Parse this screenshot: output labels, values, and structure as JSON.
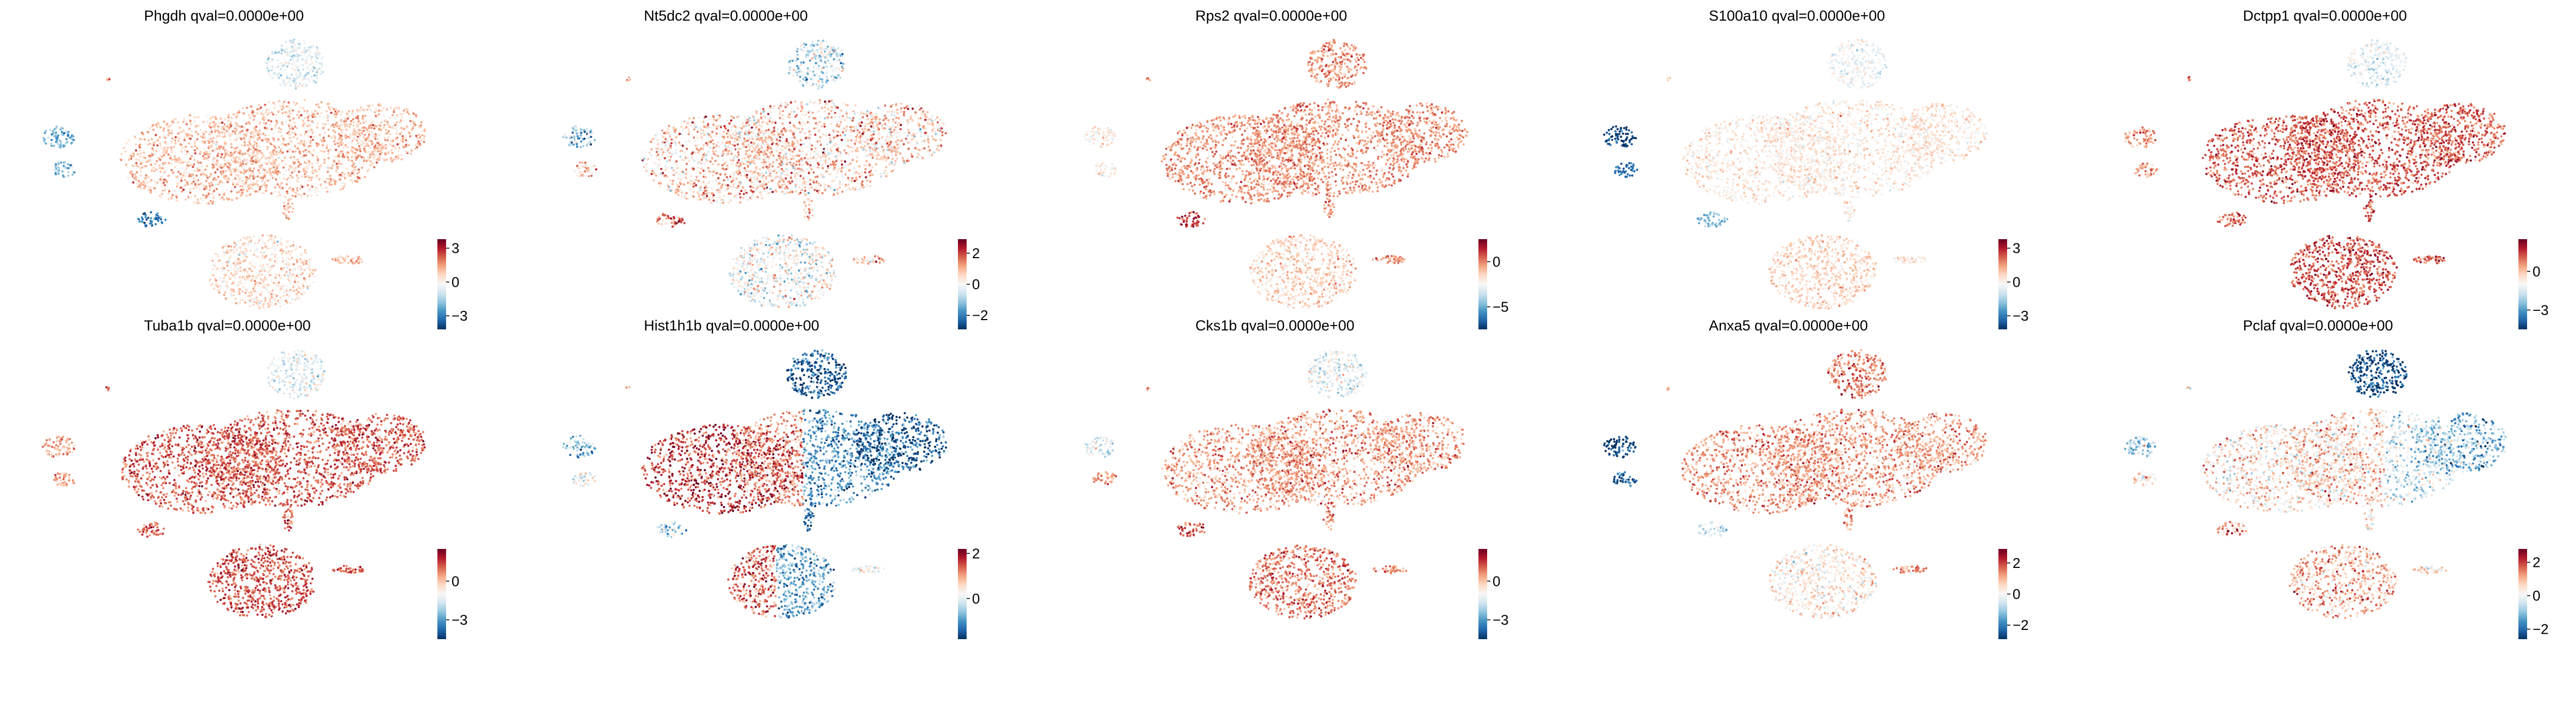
{
  "chart_data": [
    {
      "type": "scatter",
      "title": "Phgdh qval=0.0000e+00",
      "colorbar": {
        "ticks": [
          3,
          0,
          -3
        ],
        "range": [
          -4.2,
          3.8
        ]
      },
      "expression_pattern": "moderate-positive"
    },
    {
      "type": "scatter",
      "title": "Nt5dc2 qval=0.0000e+00",
      "colorbar": {
        "ticks": [
          2,
          0,
          -2
        ],
        "range": [
          -2.9,
          2.9
        ]
      },
      "expression_pattern": "mixed-positive"
    },
    {
      "type": "scatter",
      "title": "Rps2 qval=0.0000e+00",
      "colorbar": {
        "ticks": [
          0,
          -5
        ],
        "range": [
          -7.5,
          2.5
        ]
      },
      "expression_pattern": "strong-positive-main"
    },
    {
      "type": "scatter",
      "title": "S100a10 qval=0.0000e+00",
      "colorbar": {
        "ticks": [
          3,
          0,
          -3
        ],
        "range": [
          -4.2,
          3.8
        ]
      },
      "expression_pattern": "negative-small-cluster"
    },
    {
      "type": "scatter",
      "title": "Dctpp1 qval=0.0000e+00",
      "colorbar": {
        "ticks": [
          0,
          -3
        ],
        "range": [
          -4.5,
          2.5
        ]
      },
      "expression_pattern": "strong-positive"
    },
    {
      "type": "scatter",
      "title": "Tuba1b qval=0.0000e+00",
      "colorbar": {
        "ticks": [
          0,
          -3
        ],
        "range": [
          -4.5,
          2.5
        ]
      },
      "expression_pattern": "strong-positive"
    },
    {
      "type": "scatter",
      "title": "Hist1h1b qval=0.0000e+00",
      "colorbar": {
        "ticks": [
          2,
          0
        ],
        "range": [
          -1.8,
          2.2
        ]
      },
      "expression_pattern": "split-left-red-right-blue"
    },
    {
      "type": "scatter",
      "title": "Cks1b qval=0.0000e+00",
      "colorbar": {
        "ticks": [
          0,
          -3
        ],
        "range": [
          -4.5,
          2.5
        ]
      },
      "expression_pattern": "positive"
    },
    {
      "type": "scatter",
      "title": "Anxa5 qval=0.0000e+00",
      "colorbar": {
        "ticks": [
          2,
          0,
          -2
        ],
        "range": [
          -2.9,
          2.9
        ]
      },
      "expression_pattern": "positive-top-negative-small"
    },
    {
      "type": "scatter",
      "title": "Pclaf qval=0.0000e+00",
      "colorbar": {
        "ticks": [
          2,
          0,
          -2
        ],
        "range": [
          -2.6,
          2.8
        ]
      },
      "expression_pattern": "top-blue-rest-mixed"
    }
  ]
}
